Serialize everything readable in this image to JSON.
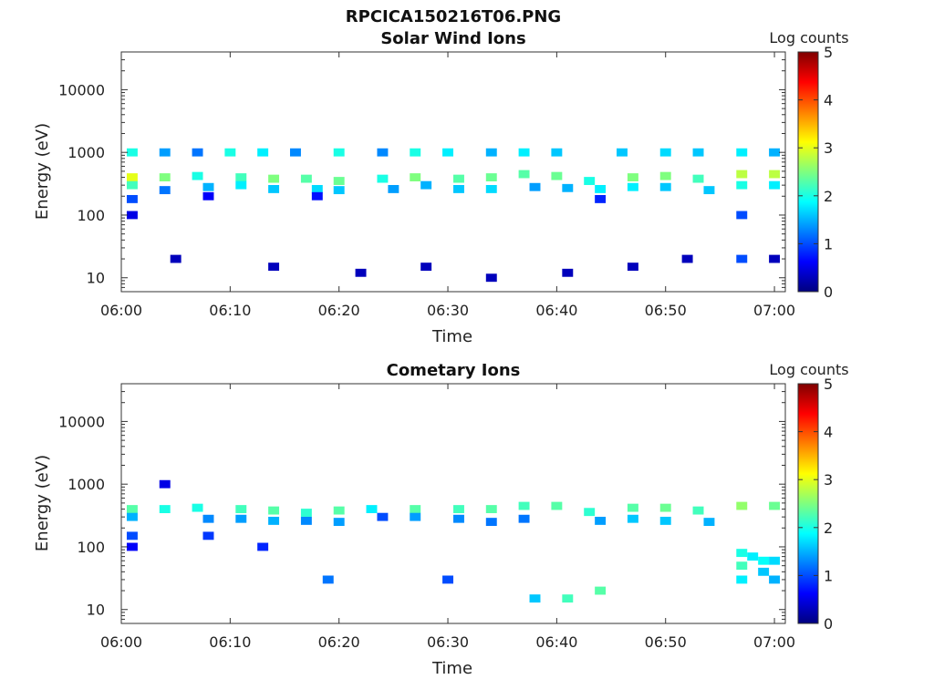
{
  "figure_title": "RPCICA150216T06.PNG",
  "colormap": [
    "#00007f",
    "#0000ff",
    "#007fff",
    "#00ffff",
    "#7fff7f",
    "#ffff00",
    "#ff7f00",
    "#ff0000",
    "#7f0000"
  ],
  "chart_data": [
    {
      "type": "heatmap",
      "title": "Solar Wind Ions",
      "xlabel": "Time",
      "ylabel": "Energy (eV)",
      "x_ticks": [
        "06:00",
        "06:10",
        "06:20",
        "06:30",
        "06:40",
        "06:50",
        "07:00"
      ],
      "x_range": [
        "06:00",
        "07:01"
      ],
      "y_scale": "log",
      "y_ticks": [
        10,
        100,
        1000,
        10000
      ],
      "y_tick_labels": [
        "10",
        "100",
        "1000",
        "10000"
      ],
      "y_range": [
        6,
        40000
      ],
      "colorbar_label": "Log counts",
      "colorbar_ticks": [
        0,
        1,
        2,
        3,
        4,
        5
      ],
      "colorbar_range": [
        0,
        5
      ],
      "cells": [
        [
          "06:01",
          1000,
          2.0
        ],
        [
          "06:01",
          400,
          3.0
        ],
        [
          "06:01",
          300,
          2.2
        ],
        [
          "06:01",
          180,
          1.0
        ],
        [
          "06:01",
          100,
          0.5
        ],
        [
          "06:04",
          400,
          2.5
        ],
        [
          "06:04",
          1000,
          1.4
        ],
        [
          "06:04",
          250,
          1.2
        ],
        [
          "06:07",
          420,
          2.0
        ],
        [
          "06:07",
          1000,
          1.2
        ],
        [
          "06:08",
          280,
          1.5
        ],
        [
          "06:08",
          200,
          0.6
        ],
        [
          "06:10",
          1000,
          2.0
        ],
        [
          "06:11",
          400,
          2.2
        ],
        [
          "06:11",
          300,
          1.8
        ],
        [
          "06:13",
          1000,
          1.8
        ],
        [
          "06:14",
          380,
          2.5
        ],
        [
          "06:14",
          260,
          1.6
        ],
        [
          "06:16",
          1000,
          1.3
        ],
        [
          "06:17",
          380,
          2.3
        ],
        [
          "06:18",
          260,
          1.7
        ],
        [
          "06:18",
          200,
          0.7
        ],
        [
          "06:20",
          1000,
          2.0
        ],
        [
          "06:20",
          350,
          2.4
        ],
        [
          "06:20",
          250,
          1.6
        ],
        [
          "06:24",
          1000,
          1.3
        ],
        [
          "06:24",
          380,
          2.0
        ],
        [
          "06:25",
          260,
          1.4
        ],
        [
          "06:27",
          1000,
          2.0
        ],
        [
          "06:27",
          400,
          2.5
        ],
        [
          "06:28",
          300,
          1.5
        ],
        [
          "06:30",
          1000,
          1.8
        ],
        [
          "06:31",
          380,
          2.3
        ],
        [
          "06:31",
          260,
          1.6
        ],
        [
          "06:34",
          1000,
          1.5
        ],
        [
          "06:34",
          400,
          2.4
        ],
        [
          "06:34",
          260,
          1.7
        ],
        [
          "06:37",
          1000,
          1.8
        ],
        [
          "06:37",
          450,
          2.3
        ],
        [
          "06:38",
          280,
          1.4
        ],
        [
          "06:40",
          1000,
          1.6
        ],
        [
          "06:40",
          420,
          2.4
        ],
        [
          "06:41",
          270,
          1.5
        ],
        [
          "06:43",
          350,
          2.0
        ],
        [
          "06:44",
          260,
          1.8
        ],
        [
          "06:44",
          180,
          0.8
        ],
        [
          "06:46",
          1000,
          1.6
        ],
        [
          "06:47",
          400,
          2.5
        ],
        [
          "06:47",
          280,
          1.8
        ],
        [
          "06:50",
          1000,
          1.7
        ],
        [
          "06:50",
          420,
          2.5
        ],
        [
          "06:50",
          280,
          1.6
        ],
        [
          "06:53",
          1000,
          1.6
        ],
        [
          "06:53",
          380,
          2.2
        ],
        [
          "06:54",
          250,
          1.6
        ],
        [
          "06:57",
          1000,
          1.8
        ],
        [
          "06:57",
          450,
          2.8
        ],
        [
          "06:57",
          300,
          2.0
        ],
        [
          "06:57",
          100,
          1.0
        ],
        [
          "07:00",
          1000,
          1.5
        ],
        [
          "07:00",
          450,
          2.8
        ],
        [
          "07:00",
          300,
          1.8
        ],
        [
          "06:05",
          20,
          0.3
        ],
        [
          "06:14",
          15,
          0.3
        ],
        [
          "06:22",
          12,
          0.3
        ],
        [
          "06:28",
          15,
          0.3
        ],
        [
          "06:34",
          10,
          0.3
        ],
        [
          "06:41",
          12,
          0.3
        ],
        [
          "06:47",
          15,
          0.3
        ],
        [
          "06:52",
          20,
          0.3
        ],
        [
          "06:57",
          20,
          1.0
        ],
        [
          "07:00",
          20,
          0.3
        ]
      ]
    },
    {
      "type": "heatmap",
      "title": "Cometary Ions",
      "xlabel": "Time",
      "ylabel": "Energy (eV)",
      "x_ticks": [
        "06:00",
        "06:10",
        "06:20",
        "06:30",
        "06:40",
        "06:50",
        "07:00"
      ],
      "x_range": [
        "06:00",
        "07:01"
      ],
      "y_scale": "log",
      "y_ticks": [
        10,
        100,
        1000,
        10000
      ],
      "y_tick_labels": [
        "10",
        "100",
        "1000",
        "10000"
      ],
      "y_range": [
        6,
        40000
      ],
      "colorbar_label": "Log counts",
      "colorbar_ticks": [
        0,
        1,
        2,
        3,
        4,
        5
      ],
      "colorbar_range": [
        0,
        5
      ],
      "cells": [
        [
          "06:01",
          400,
          2.3
        ],
        [
          "06:01",
          300,
          1.5
        ],
        [
          "06:01",
          150,
          1.0
        ],
        [
          "06:01",
          100,
          0.6
        ],
        [
          "06:04",
          400,
          2.0
        ],
        [
          "06:04",
          1000,
          0.5
        ],
        [
          "06:07",
          420,
          2.0
        ],
        [
          "06:08",
          280,
          1.3
        ],
        [
          "06:08",
          150,
          0.9
        ],
        [
          "06:11",
          400,
          2.2
        ],
        [
          "06:11",
          280,
          1.4
        ],
        [
          "06:14",
          380,
          2.3
        ],
        [
          "06:14",
          260,
          1.5
        ],
        [
          "06:13",
          100,
          0.8
        ],
        [
          "06:17",
          350,
          2.1
        ],
        [
          "06:17",
          260,
          1.3
        ],
        [
          "06:20",
          380,
          2.3
        ],
        [
          "06:20",
          250,
          1.4
        ],
        [
          "06:19",
          30,
          1.2
        ],
        [
          "06:23",
          400,
          1.8
        ],
        [
          "06:24",
          300,
          1.0
        ],
        [
          "06:27",
          400,
          2.3
        ],
        [
          "06:27",
          300,
          1.4
        ],
        [
          "06:31",
          400,
          2.2
        ],
        [
          "06:31",
          280,
          1.3
        ],
        [
          "06:30",
          30,
          1.0
        ],
        [
          "06:34",
          400,
          2.3
        ],
        [
          "06:34",
          250,
          1.2
        ],
        [
          "06:37",
          450,
          2.2
        ],
        [
          "06:37",
          280,
          1.2
        ],
        [
          "06:38",
          15,
          1.6
        ],
        [
          "06:40",
          450,
          2.3
        ],
        [
          "06:41",
          15,
          2.2
        ],
        [
          "06:43",
          360,
          2.1
        ],
        [
          "06:44",
          260,
          1.4
        ],
        [
          "06:44",
          20,
          2.3
        ],
        [
          "06:47",
          420,
          2.3
        ],
        [
          "06:47",
          280,
          1.6
        ],
        [
          "06:50",
          420,
          2.4
        ],
        [
          "06:50",
          260,
          1.6
        ],
        [
          "06:53",
          380,
          2.2
        ],
        [
          "06:54",
          250,
          1.5
        ],
        [
          "06:57",
          450,
          2.6
        ],
        [
          "06:57",
          80,
          2.0
        ],
        [
          "06:57",
          50,
          2.2
        ],
        [
          "06:57",
          30,
          1.8
        ],
        [
          "06:58",
          70,
          1.8
        ],
        [
          "06:59",
          60,
          1.9
        ],
        [
          "06:59",
          40,
          1.6
        ],
        [
          "07:00",
          450,
          2.4
        ],
        [
          "07:00",
          60,
          1.7
        ],
        [
          "07:00",
          30,
          1.5
        ]
      ]
    }
  ]
}
